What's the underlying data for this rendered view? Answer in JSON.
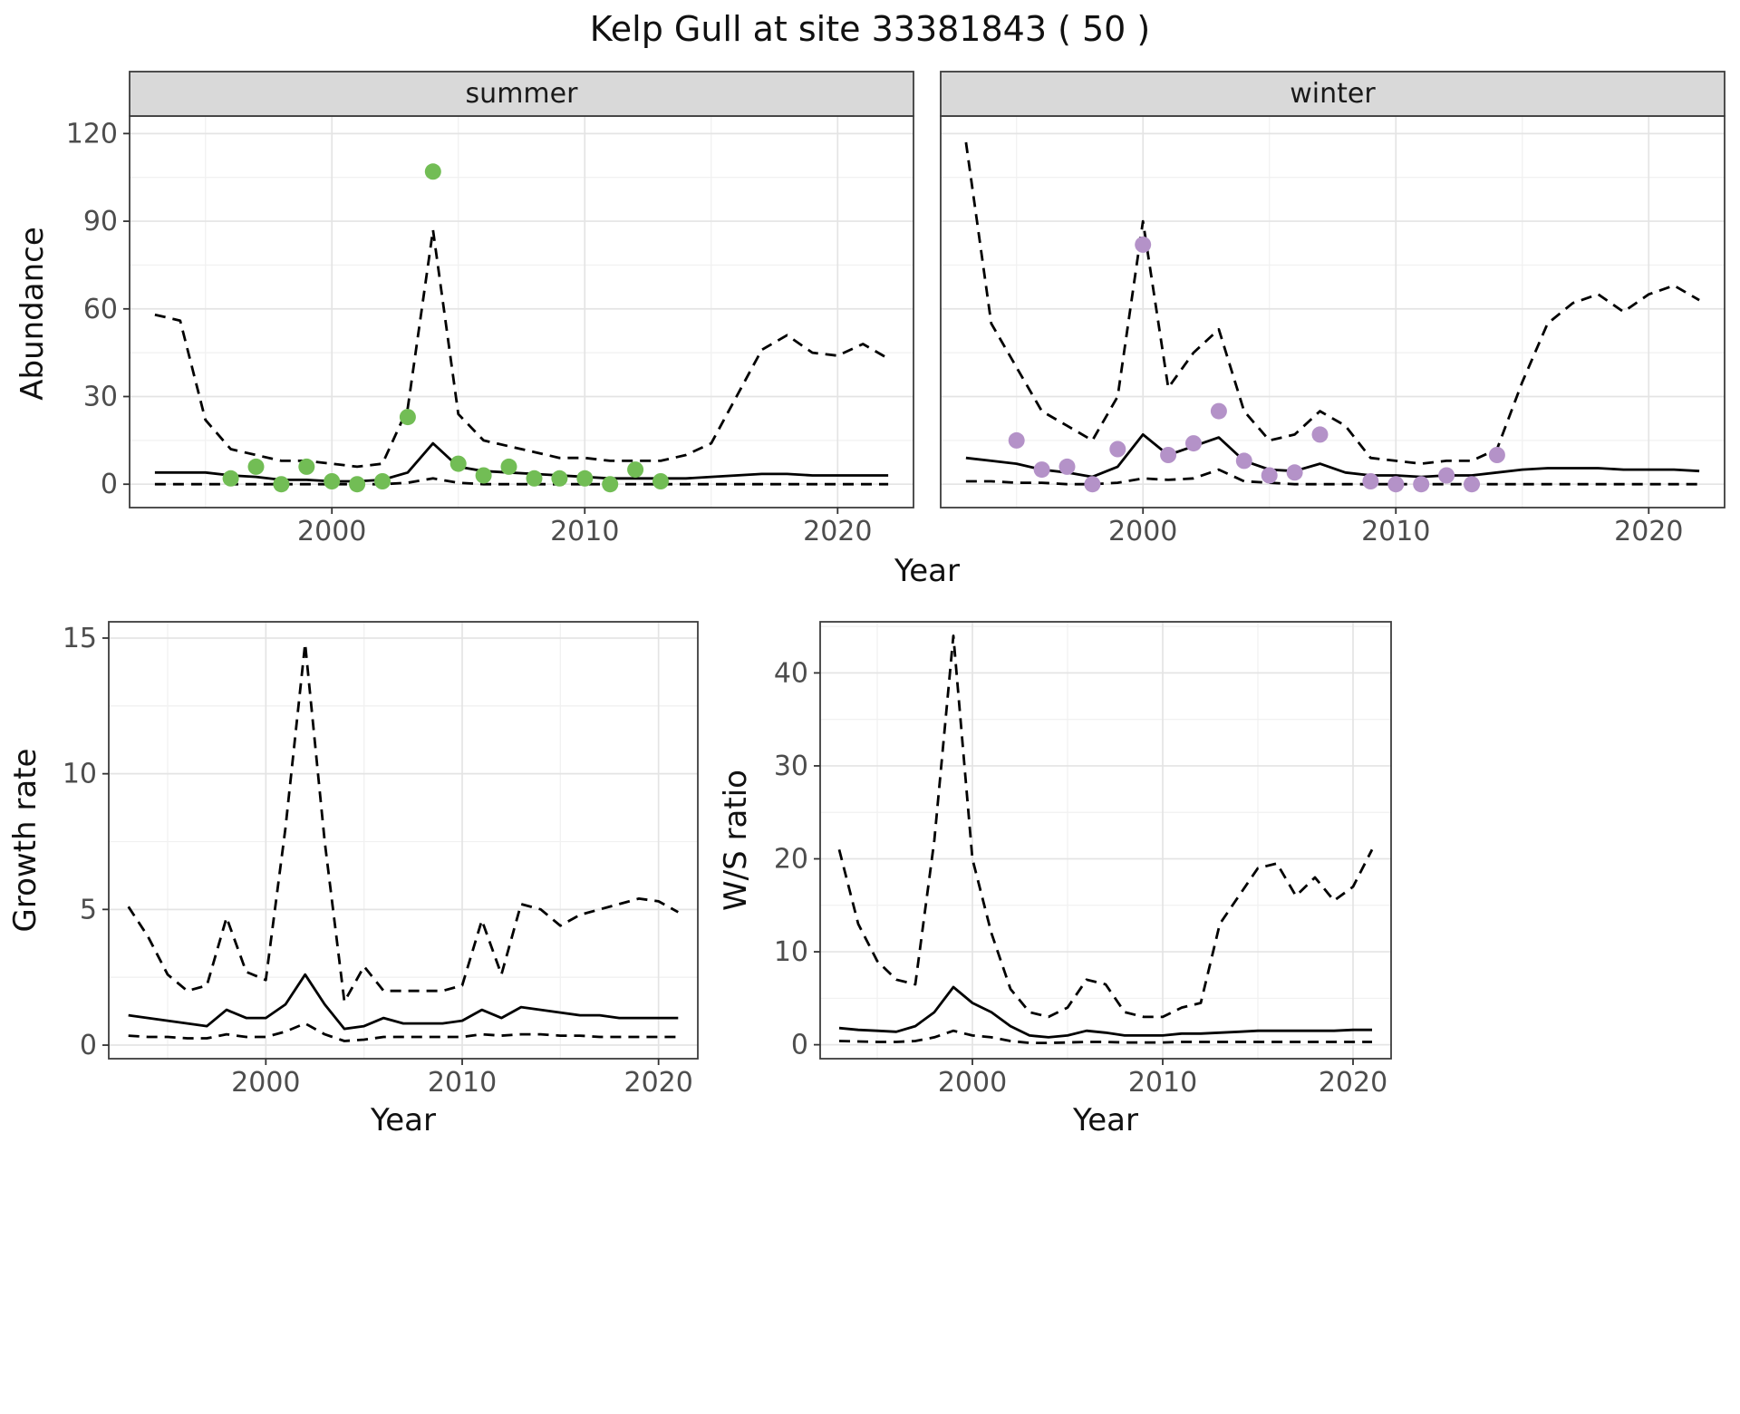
{
  "title": "Kelp Gull at site 33381843 ( 50 )",
  "axis_labels": {
    "abundance": "Abundance",
    "growth": "Growth rate",
    "ws": "W/S ratio",
    "year": "Year"
  },
  "facets": [
    "summer",
    "winter"
  ],
  "colors": {
    "summer_points": "#72bd55",
    "winter_points": "#b492c8",
    "line": "#000000",
    "strip_bg": "#d9d9d9",
    "grid_major": "#e4e4e4",
    "grid_minor": "#f1f1f1",
    "panel_border": "#3c3c3c",
    "tick_label": "#4d4d4d"
  },
  "chart_data": [
    {
      "id": "summer",
      "type": "line",
      "facet_label": "summer",
      "xlabel": "Year",
      "ylabel": "Abundance",
      "xlim": [
        1992,
        2023
      ],
      "ylim": [
        -8,
        126
      ],
      "xticks": [
        2000,
        2010,
        2020
      ],
      "yticks": [
        0,
        30,
        60,
        90,
        120
      ],
      "x": [
        1993,
        1994,
        1995,
        1996,
        1997,
        1998,
        1999,
        2000,
        2001,
        2002,
        2003,
        2004,
        2005,
        2006,
        2007,
        2008,
        2009,
        2010,
        2011,
        2012,
        2013,
        2014,
        2015,
        2016,
        2017,
        2018,
        2019,
        2020,
        2021,
        2022
      ],
      "series": [
        {
          "name": "upper_ci",
          "style": "dashed",
          "values": [
            58,
            56,
            22,
            12,
            10,
            8,
            8,
            7,
            6,
            7,
            26,
            87,
            24,
            15,
            13,
            11,
            9,
            9,
            8,
            8,
            8,
            10,
            14,
            30,
            46,
            51,
            45,
            44,
            48,
            43
          ]
        },
        {
          "name": "median",
          "style": "solid",
          "values": [
            4,
            4,
            4,
            3,
            2.5,
            1.5,
            1.5,
            1,
            1,
            1.5,
            4,
            14,
            6,
            4.5,
            4,
            3.5,
            3,
            2.5,
            2,
            2,
            2,
            2,
            2.5,
            3,
            3.5,
            3.5,
            3,
            3,
            3,
            3
          ]
        },
        {
          "name": "lower_ci",
          "style": "dashed",
          "values": [
            0,
            0,
            0,
            0,
            0,
            0,
            0,
            0,
            0,
            0,
            0.5,
            2,
            0.5,
            0,
            0,
            0,
            0,
            0,
            0,
            0,
            0,
            0,
            0,
            0,
            0,
            0,
            0,
            0,
            0,
            0
          ]
        }
      ],
      "points": {
        "color_key": "summer_points",
        "x": [
          1996,
          1997,
          1998,
          1999,
          2000,
          2001,
          2002,
          2003,
          2004,
          2005,
          2006,
          2007,
          2008,
          2009,
          2010,
          2011,
          2012,
          2013
        ],
        "y": [
          2,
          6,
          0,
          6,
          1,
          0,
          1,
          23,
          107,
          7,
          3,
          6,
          2,
          2,
          2,
          0,
          5,
          1
        ]
      }
    },
    {
      "id": "winter",
      "type": "line",
      "facet_label": "winter",
      "xlabel": "Year",
      "ylabel": "Abundance",
      "xlim": [
        1992,
        2023
      ],
      "ylim": [
        -8,
        126
      ],
      "xticks": [
        2000,
        2010,
        2020
      ],
      "yticks": [
        0,
        30,
        60,
        90,
        120
      ],
      "x": [
        1993,
        1994,
        1995,
        1996,
        1997,
        1998,
        1999,
        2000,
        2001,
        2002,
        2003,
        2004,
        2005,
        2006,
        2007,
        2008,
        2009,
        2010,
        2011,
        2012,
        2013,
        2014,
        2015,
        2016,
        2017,
        2018,
        2019,
        2020,
        2021,
        2022
      ],
      "series": [
        {
          "name": "upper_ci",
          "style": "dashed",
          "values": [
            117,
            55,
            40,
            25,
            20,
            15,
            30,
            90,
            33,
            45,
            53,
            25,
            15,
            17,
            25,
            20,
            9,
            8,
            7,
            8,
            8,
            12,
            35,
            55,
            62,
            65,
            59,
            65,
            68,
            63
          ]
        },
        {
          "name": "median",
          "style": "solid",
          "values": [
            9,
            8,
            7,
            5,
            4,
            2.5,
            6,
            17,
            10,
            13,
            16,
            8,
            5,
            4.5,
            7,
            4,
            3,
            3,
            2.5,
            3,
            3,
            4,
            5,
            5.5,
            5.5,
            5.5,
            5,
            5,
            5,
            4.5
          ]
        },
        {
          "name": "lower_ci",
          "style": "dashed",
          "values": [
            1,
            1,
            0.5,
            0.5,
            0,
            0,
            0.5,
            2,
            1.5,
            2,
            5,
            1,
            0.5,
            0,
            0,
            0,
            0,
            0,
            0,
            0,
            0,
            0,
            0,
            0,
            0,
            0,
            0,
            0,
            0,
            0
          ]
        }
      ],
      "points": {
        "color_key": "winter_points",
        "x": [
          1995,
          1996,
          1997,
          1998,
          1999,
          2000,
          2001,
          2002,
          2003,
          2004,
          2005,
          2006,
          2007,
          2009,
          2010,
          2011,
          2012,
          2013,
          2014
        ],
        "y": [
          15,
          5,
          6,
          0,
          12,
          82,
          10,
          14,
          25,
          8,
          3,
          4,
          17,
          1,
          0,
          0,
          3,
          0,
          10
        ]
      }
    },
    {
      "id": "growth",
      "type": "line",
      "xlabel": "Year",
      "ylabel": "Growth rate",
      "xlim": [
        1992,
        2022
      ],
      "ylim": [
        -0.5,
        15.6
      ],
      "xticks": [
        2000,
        2010,
        2020
      ],
      "yticks": [
        0,
        5,
        10,
        15
      ],
      "x": [
        1993,
        1994,
        1995,
        1996,
        1997,
        1998,
        1999,
        2000,
        2001,
        2002,
        2003,
        2004,
        2005,
        2006,
        2007,
        2008,
        2009,
        2010,
        2011,
        2012,
        2013,
        2014,
        2015,
        2016,
        2017,
        2018,
        2019,
        2020,
        2021
      ],
      "series": [
        {
          "name": "upper_ci",
          "style": "dashed",
          "values": [
            5.1,
            4.0,
            2.6,
            2.0,
            2.2,
            4.7,
            2.7,
            2.4,
            8.0,
            14.8,
            7.5,
            1.6,
            2.9,
            2.0,
            2.0,
            2.0,
            2.0,
            2.2,
            4.6,
            2.6,
            5.2,
            5.0,
            4.4,
            4.8,
            5.0,
            5.2,
            5.4,
            5.3,
            4.9
          ]
        },
        {
          "name": "median",
          "style": "solid",
          "values": [
            1.1,
            1.0,
            0.9,
            0.8,
            0.7,
            1.3,
            1.0,
            1.0,
            1.5,
            2.6,
            1.5,
            0.6,
            0.7,
            1.0,
            0.8,
            0.8,
            0.8,
            0.9,
            1.3,
            1.0,
            1.4,
            1.3,
            1.2,
            1.1,
            1.1,
            1.0,
            1.0,
            1.0,
            1.0
          ]
        },
        {
          "name": "lower_ci",
          "style": "dashed",
          "values": [
            0.35,
            0.3,
            0.3,
            0.25,
            0.25,
            0.4,
            0.3,
            0.3,
            0.5,
            0.8,
            0.4,
            0.15,
            0.2,
            0.3,
            0.3,
            0.3,
            0.3,
            0.3,
            0.4,
            0.35,
            0.4,
            0.4,
            0.35,
            0.35,
            0.3,
            0.3,
            0.3,
            0.3,
            0.3
          ]
        }
      ]
    },
    {
      "id": "ws",
      "type": "line",
      "xlabel": "Year",
      "ylabel": "W/S ratio",
      "xlim": [
        1992,
        2022
      ],
      "ylim": [
        -1.5,
        45.5
      ],
      "xticks": [
        2000,
        2010,
        2020
      ],
      "yticks": [
        0,
        10,
        20,
        30,
        40
      ],
      "x": [
        1993,
        1994,
        1995,
        1996,
        1997,
        1998,
        1999,
        2000,
        2001,
        2002,
        2003,
        2004,
        2005,
        2006,
        2007,
        2008,
        2009,
        2010,
        2011,
        2012,
        2013,
        2014,
        2015,
        2016,
        2017,
        2018,
        2019,
        2020,
        2021
      ],
      "series": [
        {
          "name": "upper_ci",
          "style": "dashed",
          "values": [
            21,
            13,
            9,
            7,
            6.5,
            22,
            44,
            20,
            12,
            6,
            3.5,
            3,
            4,
            7,
            6.5,
            3.5,
            3,
            3,
            4,
            4.5,
            13,
            16,
            19,
            19.5,
            16,
            18,
            15.5,
            17,
            21
          ]
        },
        {
          "name": "median",
          "style": "solid",
          "values": [
            1.8,
            1.6,
            1.5,
            1.4,
            2.0,
            3.5,
            6.2,
            4.5,
            3.5,
            2.0,
            1.0,
            0.8,
            1.0,
            1.5,
            1.3,
            1.0,
            1.0,
            1.0,
            1.2,
            1.2,
            1.3,
            1.4,
            1.5,
            1.5,
            1.5,
            1.5,
            1.5,
            1.6,
            1.6
          ]
        },
        {
          "name": "lower_ci",
          "style": "dashed",
          "values": [
            0.4,
            0.35,
            0.3,
            0.3,
            0.4,
            0.8,
            1.5,
            1.0,
            0.8,
            0.4,
            0.2,
            0.2,
            0.25,
            0.3,
            0.3,
            0.25,
            0.25,
            0.25,
            0.3,
            0.3,
            0.3,
            0.3,
            0.3,
            0.3,
            0.3,
            0.3,
            0.3,
            0.3,
            0.3
          ]
        }
      ]
    }
  ]
}
